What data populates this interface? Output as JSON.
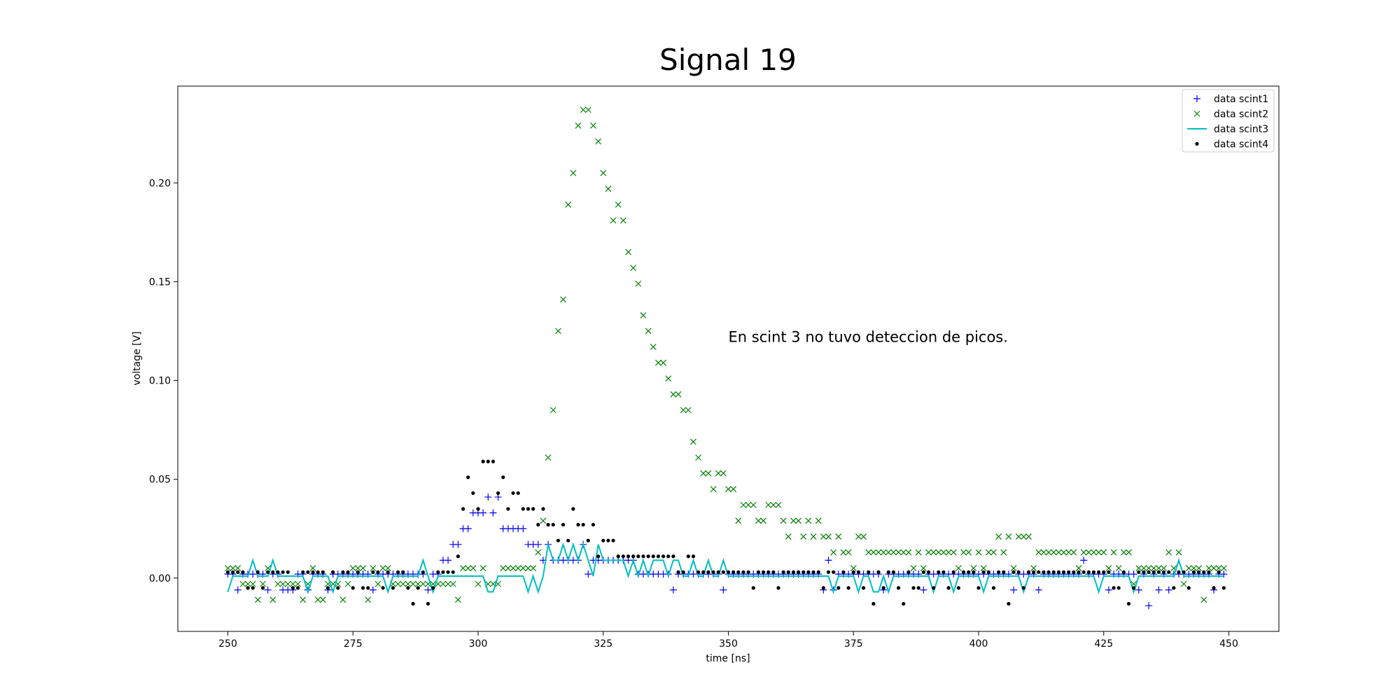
{
  "chart_data": {
    "type": "scatter",
    "title": "Signal 19",
    "xlabel": "time [ns]",
    "ylabel": "voltage [V]",
    "annotation": {
      "text": "En scint 3 no tuvo deteccion de picos.",
      "x": 350,
      "y": 0.122
    },
    "xlim": [
      240,
      460
    ],
    "ylim": [
      -0.027,
      0.249
    ],
    "xticks": [
      250,
      275,
      300,
      325,
      350,
      375,
      400,
      425,
      450
    ],
    "yticks": [
      {
        "value": 0,
        "label": "0.00"
      },
      0.05,
      {
        "value": 0.1,
        "label": "0.10"
      },
      {
        "value": 0.15,
        "label": "0.15"
      },
      {
        "value": 0.2,
        "label": "0.20"
      }
    ],
    "legend": "upper right",
    "x": [
      250,
      251,
      252,
      253,
      254,
      255,
      256,
      257,
      258,
      259,
      260,
      261,
      262,
      263,
      264,
      265,
      266,
      267,
      268,
      269,
      270,
      271,
      272,
      273,
      274,
      275,
      276,
      277,
      278,
      279,
      280,
      281,
      282,
      283,
      284,
      285,
      286,
      287,
      288,
      289,
      290,
      291,
      292,
      293,
      294,
      295,
      296,
      297,
      298,
      299,
      300,
      301,
      302,
      303,
      304,
      305,
      306,
      307,
      308,
      309,
      310,
      311,
      312,
      313,
      314,
      315,
      316,
      317,
      318,
      319,
      320,
      321,
      322,
      323,
      324,
      325,
      326,
      327,
      328,
      329,
      330,
      331,
      332,
      333,
      334,
      335,
      336,
      337,
      338,
      339,
      340,
      341,
      342,
      343,
      344,
      345,
      346,
      347,
      348,
      349,
      350,
      351,
      352,
      353,
      354,
      355,
      356,
      357,
      358,
      359,
      360,
      361,
      362,
      363,
      364,
      365,
      366,
      367,
      368,
      369,
      370,
      371,
      372,
      373,
      374,
      375,
      376,
      377,
      378,
      379,
      380,
      381,
      382,
      383,
      384,
      385,
      386,
      387,
      388,
      389,
      390,
      391,
      392,
      393,
      394,
      395,
      396,
      397,
      398,
      399,
      400,
      401,
      402,
      403,
      404,
      405,
      406,
      407,
      408,
      409,
      410,
      411,
      412,
      413,
      414,
      415,
      416,
      417,
      418,
      419,
      420,
      421,
      422,
      423,
      424,
      425,
      426,
      427,
      428,
      429,
      430,
      431,
      432,
      433,
      434,
      435,
      436,
      437,
      438,
      439,
      440,
      441,
      442,
      443,
      444,
      445,
      446,
      447,
      448,
      449
    ],
    "series": [
      {
        "name": "data scint1",
        "kind": "scatter",
        "marker": "+",
        "color": "#0000ff",
        "values": [
          0.002,
          0.002,
          -0.006,
          0.002,
          0.002,
          0.002,
          0.002,
          0.002,
          -0.006,
          0.002,
          0.002,
          -0.006,
          -0.006,
          -0.006,
          0.002,
          0.002,
          -0.006,
          0.002,
          0.002,
          0.002,
          -0.006,
          0.002,
          0.002,
          0.002,
          0.002,
          0.002,
          0.002,
          0.002,
          0.002,
          -0.006,
          0.002,
          0.002,
          0.002,
          0.002,
          0.002,
          0.002,
          0.002,
          0.002,
          0.002,
          0.002,
          -0.006,
          0.002,
          0.002,
          0.009,
          0.009,
          0.017,
          0.017,
          0.025,
          0.025,
          0.033,
          0.033,
          0.033,
          0.041,
          0.033,
          0.041,
          0.025,
          0.025,
          0.025,
          0.025,
          0.025,
          0.017,
          0.017,
          0.017,
          0.009,
          0.017,
          0.009,
          0.009,
          0.009,
          0.009,
          0.009,
          0.009,
          0.017,
          0.002,
          0.009,
          0.009,
          0.009,
          0.009,
          0.009,
          0.009,
          0.009,
          0.009,
          0.009,
          0.002,
          0.002,
          0.002,
          0.002,
          0.002,
          0.002,
          0.002,
          -0.006,
          0.002,
          0.002,
          0.002,
          0.002,
          0.002,
          0.002,
          0.002,
          0.002,
          0.002,
          -0.006,
          0.002,
          0.002,
          0.002,
          0.002,
          0.002,
          0.002,
          0.002,
          0.002,
          0.002,
          0.002,
          0.002,
          0.002,
          0.002,
          0.002,
          0.002,
          0.002,
          0.002,
          0.002,
          0.002,
          -0.006,
          0.009,
          -0.006,
          0.002,
          0.002,
          0.002,
          0.002,
          0.002,
          0.002,
          0.002,
          0.002,
          0.002,
          -0.006,
          0.002,
          0.002,
          0.002,
          0.002,
          0.002,
          0.002,
          0.002,
          -0.006,
          0.002,
          0.002,
          0.002,
          0.002,
          0.002,
          0.002,
          0.002,
          0.002,
          0.002,
          0.002,
          0.002,
          0.002,
          0.002,
          0.002,
          0.002,
          0.002,
          0.002,
          -0.006,
          0.002,
          0.002,
          0.002,
          0.002,
          -0.006,
          0.002,
          0.002,
          0.002,
          0.002,
          0.002,
          0.002,
          0.002,
          0.002,
          0.009,
          0.002,
          0.002,
          0.002,
          0.002,
          -0.006,
          0.002,
          0.002,
          0.002,
          0.002,
          0.002,
          -0.006,
          0.002,
          -0.014,
          0.002,
          -0.006,
          0.002,
          -0.006,
          0.002,
          0.002,
          0.002,
          0.002,
          0.002,
          0.002,
          0.002,
          0.002,
          -0.006,
          0.002,
          0.002
        ]
      },
      {
        "name": "data scint2",
        "kind": "scatter",
        "marker": "x",
        "color": "#008000",
        "values": [
          0.005,
          0.005,
          0.005,
          -0.003,
          -0.003,
          -0.003,
          -0.011,
          -0.003,
          0.005,
          -0.011,
          -0.003,
          -0.003,
          -0.003,
          -0.003,
          -0.003,
          -0.011,
          -0.003,
          0.005,
          -0.011,
          -0.011,
          -0.003,
          -0.003,
          -0.003,
          -0.011,
          -0.003,
          0.005,
          0.005,
          0.005,
          -0.011,
          0.005,
          -0.003,
          0.005,
          0.005,
          -0.003,
          -0.003,
          -0.003,
          -0.003,
          -0.003,
          -0.003,
          -0.003,
          -0.003,
          -0.003,
          -0.003,
          -0.003,
          -0.003,
          -0.003,
          -0.011,
          0.005,
          0.005,
          0.005,
          -0.003,
          0.005,
          -0.003,
          -0.003,
          -0.003,
          0.005,
          0.005,
          0.005,
          0.005,
          0.005,
          0.005,
          0.005,
          0.013,
          0.029,
          0.061,
          0.085,
          0.125,
          0.141,
          0.189,
          0.205,
          0.229,
          0.237,
          0.237,
          0.229,
          0.221,
          0.205,
          0.197,
          0.181,
          0.189,
          0.181,
          0.165,
          0.157,
          0.149,
          0.133,
          0.125,
          0.117,
          0.109,
          0.109,
          0.101,
          0.093,
          0.093,
          0.085,
          0.085,
          0.069,
          0.061,
          0.053,
          0.053,
          0.045,
          0.053,
          0.053,
          0.045,
          0.045,
          0.029,
          0.037,
          0.037,
          0.037,
          0.029,
          0.029,
          0.037,
          0.037,
          0.037,
          0.029,
          0.021,
          0.029,
          0.029,
          0.021,
          0.029,
          0.021,
          0.029,
          0.021,
          0.021,
          0.013,
          0.021,
          0.013,
          0.013,
          0.005,
          0.021,
          0.021,
          0.013,
          0.013,
          0.013,
          0.013,
          0.013,
          0.013,
          0.013,
          0.013,
          0.013,
          0.005,
          0.013,
          0.005,
          0.013,
          0.013,
          0.013,
          0.013,
          0.013,
          0.013,
          0.005,
          0.013,
          0.013,
          0.005,
          0.013,
          0.005,
          0.013,
          0.013,
          0.021,
          0.013,
          0.021,
          0.005,
          0.021,
          0.021,
          0.021,
          0.005,
          0.013,
          0.013,
          0.013,
          0.013,
          0.013,
          0.013,
          0.013,
          0.013,
          0.005,
          0.013,
          0.013,
          0.013,
          0.013,
          0.013,
          0.005,
          0.013,
          0.005,
          0.013,
          0.013,
          -0.003,
          0.005,
          0.005,
          0.005,
          0.005,
          0.005,
          0.005,
          0.013,
          0.005,
          0.013,
          -0.003,
          0.005,
          0.005,
          0.005,
          -0.011,
          0.005,
          0.005,
          0.005,
          0.005
        ]
      },
      {
        "name": "data scint3",
        "kind": "line",
        "color": "#00bfbf",
        "values": [
          -0.007,
          0.001,
          0.001,
          0.001,
          0.001,
          0.009,
          0.001,
          0.001,
          0.001,
          0.009,
          0.001,
          0.001,
          0.001,
          0.001,
          0.001,
          0.001,
          -0.007,
          0.001,
          0.001,
          0.001,
          0.001,
          -0.007,
          0.001,
          0.001,
          0.001,
          0.001,
          0.001,
          0.001,
          0.001,
          0.001,
          0.001,
          0.001,
          -0.007,
          0.001,
          0.001,
          0.001,
          0.001,
          0.001,
          0.001,
          0.009,
          0.001,
          -0.007,
          0.001,
          0.001,
          0.001,
          0.001,
          0.001,
          0.001,
          0.001,
          0.001,
          0.001,
          0.001,
          -0.007,
          -0.007,
          0.001,
          0.001,
          0.001,
          0.001,
          0.001,
          0.001,
          -0.007,
          0.001,
          -0.007,
          0.001,
          0.017,
          0.009,
          0.009,
          0.017,
          0.009,
          0.017,
          0.009,
          0.017,
          0.009,
          0.001,
          0.017,
          0.009,
          0.009,
          0.009,
          0.009,
          0.009,
          0.001,
          0.009,
          0.001,
          0.009,
          0.001,
          0.009,
          0.009,
          0.009,
          0.001,
          0.009,
          0.009,
          0.001,
          0.001,
          0.009,
          0.001,
          0.001,
          0.009,
          0.001,
          0.001,
          0.009,
          0.001,
          0.001,
          0.001,
          0.001,
          0.001,
          0.001,
          0.001,
          0.001,
          0.001,
          0.001,
          0.001,
          0.001,
          0.001,
          0.001,
          0.001,
          0.001,
          0.001,
          0.001,
          0.001,
          0.001,
          0.001,
          -0.007,
          0.001,
          0.001,
          0.001,
          0.001,
          -0.007,
          0.001,
          0.001,
          -0.007,
          -0.007,
          0.001,
          -0.007,
          0.001,
          0.001,
          0.001,
          0.001,
          0.001,
          0.001,
          0.001,
          0.001,
          -0.007,
          0.001,
          0.001,
          0.001,
          -0.007,
          0.001,
          0.001,
          0.001,
          0.001,
          0.001,
          -0.007,
          0.001,
          0.001,
          0.001,
          0.001,
          0.001,
          0.001,
          0.001,
          -0.007,
          0.001,
          0.001,
          0.001,
          0.001,
          0.001,
          0.001,
          0.001,
          0.001,
          0.001,
          0.001,
          0.001,
          0.001,
          0.001,
          0.001,
          -0.007,
          0.001,
          0.001,
          0.001,
          0.001,
          0.001,
          0.001,
          -0.007,
          0.001,
          0.001,
          0.001,
          0.001,
          0.001,
          0.001,
          0.001,
          0.001,
          0.009,
          0.001,
          0.001,
          0.001,
          0.001,
          0.001,
          0.001,
          0.001,
          0.001,
          0.001
        ]
      },
      {
        "name": "data scint4",
        "kind": "scatter",
        "marker": ".",
        "color": "#000000",
        "values": [
          0.003,
          0.003,
          0.003,
          0.003,
          -0.005,
          -0.005,
          0.003,
          -0.005,
          0.003,
          0.003,
          0.003,
          0.003,
          0.003,
          -0.005,
          -0.005,
          0.003,
          0.003,
          0.003,
          0.003,
          0.003,
          -0.005,
          0.003,
          -0.005,
          0.003,
          0.003,
          -0.005,
          0.003,
          -0.005,
          -0.005,
          0.003,
          0.003,
          -0.005,
          0.003,
          -0.005,
          0.003,
          0.003,
          -0.005,
          -0.013,
          -0.005,
          0.003,
          -0.013,
          -0.005,
          0.003,
          0.003,
          0.003,
          0.003,
          0.011,
          0.035,
          0.051,
          0.043,
          0.035,
          0.059,
          0.059,
          0.059,
          0.043,
          0.051,
          0.035,
          0.043,
          0.043,
          0.035,
          0.035,
          0.035,
          0.027,
          0.035,
          0.027,
          0.027,
          0.019,
          0.027,
          0.019,
          0.035,
          0.027,
          0.027,
          0.019,
          0.027,
          0.011,
          0.019,
          0.019,
          0.019,
          0.011,
          0.011,
          0.011,
          0.011,
          0.011,
          0.011,
          0.011,
          0.011,
          0.011,
          0.011,
          0.011,
          0.011,
          0.003,
          0.003,
          0.011,
          0.011,
          0.003,
          0.003,
          0.003,
          0.003,
          0.003,
          0.003,
          0.003,
          0.003,
          0.003,
          0.003,
          0.003,
          -0.005,
          0.003,
          0.003,
          0.003,
          0.003,
          -0.005,
          0.003,
          0.003,
          0.003,
          0.003,
          0.003,
          0.003,
          0.003,
          0.003,
          -0.005,
          0.003,
          0.003,
          -0.005,
          0.003,
          -0.005,
          0.003,
          0.003,
          -0.005,
          0.003,
          -0.013,
          0.003,
          -0.005,
          0.003,
          0.003,
          -0.005,
          -0.013,
          0.003,
          -0.005,
          -0.005,
          0.003,
          0.003,
          -0.005,
          0.003,
          0.003,
          -0.005,
          0.003,
          -0.005,
          0.003,
          0.003,
          0.003,
          -0.005,
          0.003,
          0.003,
          -0.005,
          0.003,
          0.003,
          -0.013,
          0.003,
          0.003,
          -0.005,
          0.003,
          0.003,
          0.003,
          0.003,
          0.003,
          0.003,
          0.003,
          0.003,
          0.003,
          0.003,
          0.003,
          0.003,
          0.003,
          0.003,
          0.003,
          0.003,
          0.003,
          -0.005,
          -0.005,
          0.003,
          -0.013,
          -0.005,
          0.003,
          0.003,
          0.003,
          0.003,
          0.003,
          0.003,
          0.003,
          -0.005,
          0.003,
          0.003,
          -0.005,
          0.003,
          0.003,
          0.003,
          0.003,
          -0.005,
          0.003,
          -0.005
        ]
      }
    ]
  }
}
